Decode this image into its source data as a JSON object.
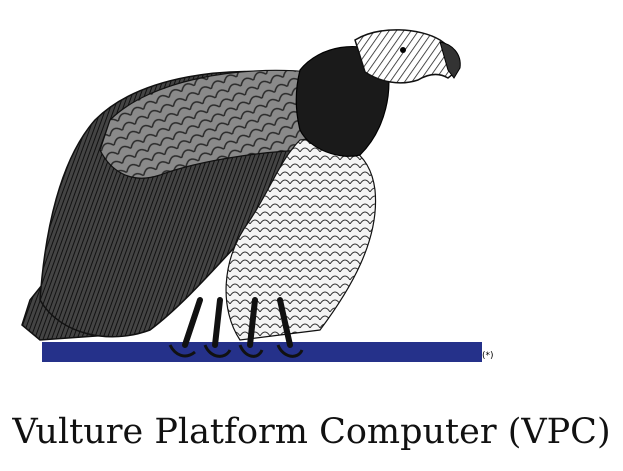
{
  "illustration": {
    "subject": "vulture-illustration",
    "bar_note": "(*)",
    "colors": {
      "bar": "#25318a",
      "ink": "#111111",
      "paper": "#ffffff"
    }
  },
  "caption": {
    "text": "Vulture Platform Computer (VPC)"
  }
}
